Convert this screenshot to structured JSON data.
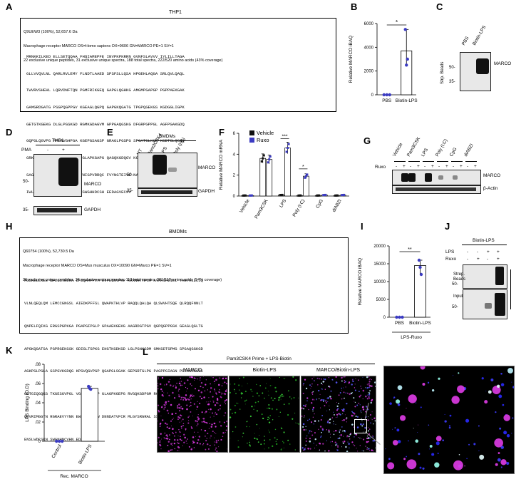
{
  "panels": [
    "A",
    "B",
    "C",
    "D",
    "E",
    "F",
    "G",
    "H",
    "I",
    "J",
    "K",
    "L"
  ],
  "A": {
    "title": "THP1",
    "header": [
      "Q9UEW3 (100%), 52,657.6 Da",
      "Macrophage receptor MARCO OS=Homo sapiens OX=9606 GN=MARCO PE=1 SV=1",
      "22 exclusive unique peptides, 31 exclusive unique spectra, 188 total spectra, 222/520 amino acids (43% coverage)"
    ],
    "sequence": [
      "MRNKKILKED ELLSETQQAA FHQIAMEPFE INVPKPKRRN GVNFSLAVVV IYLILLTAGA",
      "GLLVVQVLNL QARLRVLEMY FLNDTLAAED SPSFSLLQSA HPGEHLAQGA SRLQVLQAQL",
      "TWVRVSHEHL LQRVDNFTQN PGMFRIKGEQ GAPGLQGHKG AMGMPGAPGP PGPPAEKGAK",
      "GAMGRDGATG PSGPQGPPGV KGEAGLQGPQ GAPGKQGATG TPGPQGEKGS KGDGGLIGPK",
      "GETGTKGEKG DLGLPGSKGD RGMKGDAGVM GPPGAQGSKG DFGRPGPPGL AGFPGAKGDQ",
      "GQPGLQGVPG PPGAVGHPGA KGEPGSAGSP GRAGLPGSPG SPGATGLKGS KGDTGLQGQQ",
      "GRKGESGVPG PAGVKGEQGS PGLAPKGAPG QAGQKGDQGV KGSSGEQGVR GFPGPPGPSE",
      "SAGAPGPPGP RGAGVAFGPS VNIGPVRRQC FVYNGTEIVE NAHSNLNREG GGWASQGRAN",
      "IWLDNVCRQG TESTLWSCTK NSWGHHDCSH EEDAGVECSV"
    ]
  },
  "B": {
    "ylabel": "Relative MARCO iBAQ",
    "yticks": [
      "0",
      "2000",
      "4000",
      "6000"
    ],
    "categories": [
      "PBS",
      "Biotin-LPS"
    ],
    "sig": "*"
  },
  "C": {
    "lanes": [
      "PBS",
      "Biotin-LPS"
    ],
    "row_label": "Strp. Beads",
    "band_label": "MARCO",
    "mw": [
      "50-",
      "35-"
    ]
  },
  "D": {
    "title": "THP1",
    "pma_label": "PMA",
    "pma_states": [
      "-",
      "+"
    ],
    "band1": "MARCO",
    "band2": "GAPDH",
    "mw": [
      "50-",
      "35-"
    ]
  },
  "E": {
    "title": "BMDMs",
    "lanes": [
      "UT",
      "Pam3CSK4",
      "LPS",
      "Poly (I:C)"
    ],
    "band1": "MARCO",
    "band2": "GAPDH",
    "mw": [
      "50-",
      "35-"
    ]
  },
  "F": {
    "ylabel": "Relative MARCO mRNA",
    "yticks": [
      "0",
      "2",
      "4",
      "6"
    ],
    "legend": [
      "Vehicle",
      "Ruxo"
    ],
    "categories": [
      "Vehicle",
      "Pam3CSK",
      "LPS",
      "Poly (I:C)",
      "CpG",
      "diABZI"
    ],
    "sig": [
      "***",
      "*"
    ]
  },
  "G": {
    "lanes": [
      "Vehicle",
      "Pam3CSK",
      "LPS",
      "Poly (I:C)",
      "CpG",
      "diABZI"
    ],
    "ruxo_label": "Ruxo",
    "ruxo_states": [
      "-",
      "+",
      "-",
      "+",
      "-",
      "+",
      "-",
      "+",
      "-",
      "+",
      "-",
      "+"
    ],
    "band1": "MARCO",
    "band2": "β-Actin"
  },
  "H": {
    "title": "BMDMs",
    "header": [
      "Q60754 (100%), 52,730.5 Da",
      "Macrophage receptor MARCO OS=Mus musculus OX=10090 GN=Marco PE=1 SV=1",
      "26 exclusive unique peptides, 34 exclusive unique spectra, 113 total spectra, 281/518 amino acids (54% coverage)"
    ],
    "sequence": [
      "MGSKELLKEE DFLGSTEDRA DFDQAMFPVM ETFEINVPKP KKRNGTTFCM AVMAIHLILL TAGTALLLLQ",
      "VLNLQEQLQM LEMCCGNGSL AIEDKPFFSL QWAPKTHLVP RAQQLQALQA QLSWVHTSQE QLRQQFNNLT",
      "QNPELFQIKG ERGSPGPKGA PGAPGIPGLP GPAAEKGEKG AAGRDGTPGV QGPQGPPGSK GEAGLQGLTG",
      "APGKQGATGA PGPRGEKGSK GDIGLTGPKG EHGTKGDKGD LGLPGNKGDM GMKGDTGPMG SPGAQGGKGD",
      "AGKPGLPGLA GSPGVKGDQG KPGVQGVPGP QGAPGLSGAK GEPGRTGLPG PAGPPGIAGN PGIAGVKGSK",
      "GDTGIQGQKG TKGESGVPGL VGRKGDTGSP GLAGPKGEPG RVGQKGDPGM RGSSGQQGQK GEKGQKGESF",
      "QRVRIMGGTN RGRAEVYYNN EWGTICDDDW DNNDATVFCR MLGYSRGRAL SSYGGGSGNI WLDNVNCRGT",
      "ENSLWDCSKN SWGNHNCVHN EDAGVECS"
    ]
  },
  "I": {
    "ylabel": "Relative MARCO iBAQ",
    "yticks": [
      "0",
      "5000",
      "10000",
      "15000",
      "20000"
    ],
    "categories": [
      "PBS",
      "Biotin-LPS"
    ],
    "group": "LPS-Ruxo",
    "sig": "**"
  },
  "J": {
    "title": "Biotin-LPS",
    "row1": "LPS",
    "row2": "Ruxo",
    "lps_states": [
      "-",
      "-",
      "+",
      "+"
    ],
    "ruxo_states": [
      "-",
      "+",
      "-",
      "+"
    ],
    "blot1": "Strep. Beads",
    "blot2": "Input",
    "mw": [
      "50-",
      "50-"
    ]
  },
  "K": {
    "ylabel": "LPS Binding (O.D)",
    "yticks": [
      "0",
      ".02",
      ".04",
      ".06",
      ".08"
    ],
    "categories": [
      "Control",
      "Biotin-LPS"
    ],
    "group": "Rec. MARCO"
  },
  "L": {
    "title": "Pam3CSK4 Prime + LPS-Biotin",
    "images": [
      "MARCO",
      "Biotin-LPS",
      "MARCO/Biotin-LPS"
    ]
  },
  "colors": {
    "highlight": "#f5c667",
    "ptm": "#66a58a",
    "vehicle": "#111111",
    "ruxo": "#3b3bc2",
    "magenta": "#e03ce8",
    "green": "#3ddc3d"
  },
  "chart_data": [
    {
      "panel": "B",
      "type": "bar",
      "categories": [
        "PBS",
        "Biotin-LPS"
      ],
      "values": [
        0,
        3700
      ],
      "points": [
        [
          0,
          0,
          0
        ],
        [
          5500,
          2500,
          3000
        ]
      ],
      "ylabel": "Relative MARCO iBAQ",
      "ylim": [
        0,
        6000
      ]
    },
    {
      "panel": "F",
      "type": "bar",
      "categories": [
        "Vehicle",
        "Pam3CSK",
        "LPS",
        "Poly (I:C)",
        "CpG",
        "diABZI"
      ],
      "series": [
        {
          "name": "Vehicle",
          "values": [
            0.05,
            3.6,
            0.1,
            0.05,
            0.05,
            0.05
          ]
        },
        {
          "name": "Ruxo",
          "values": [
            0.05,
            3.5,
            4.6,
            1.9,
            0.1,
            0.1
          ]
        }
      ],
      "ylabel": "Relative MARCO mRNA",
      "ylim": [
        0,
        6
      ]
    },
    {
      "panel": "I",
      "type": "bar",
      "categories": [
        "PBS",
        "Biotin-LPS"
      ],
      "values": [
        0,
        14500
      ],
      "points": [
        [
          0,
          0,
          0
        ],
        [
          16000,
          14000,
          12000
        ]
      ],
      "ylabel": "Relative MARCO iBAQ",
      "ylim": [
        0,
        20000
      ]
    },
    {
      "panel": "K",
      "type": "bar",
      "categories": [
        "Control",
        "Biotin-LPS"
      ],
      "values": [
        0,
        0.055
      ],
      "points": [
        [
          0,
          0,
          0
        ],
        [
          0.057,
          0.055,
          0.054
        ]
      ],
      "ylabel": "LPS Binding (O.D)",
      "ylim": [
        0,
        0.08
      ]
    }
  ]
}
